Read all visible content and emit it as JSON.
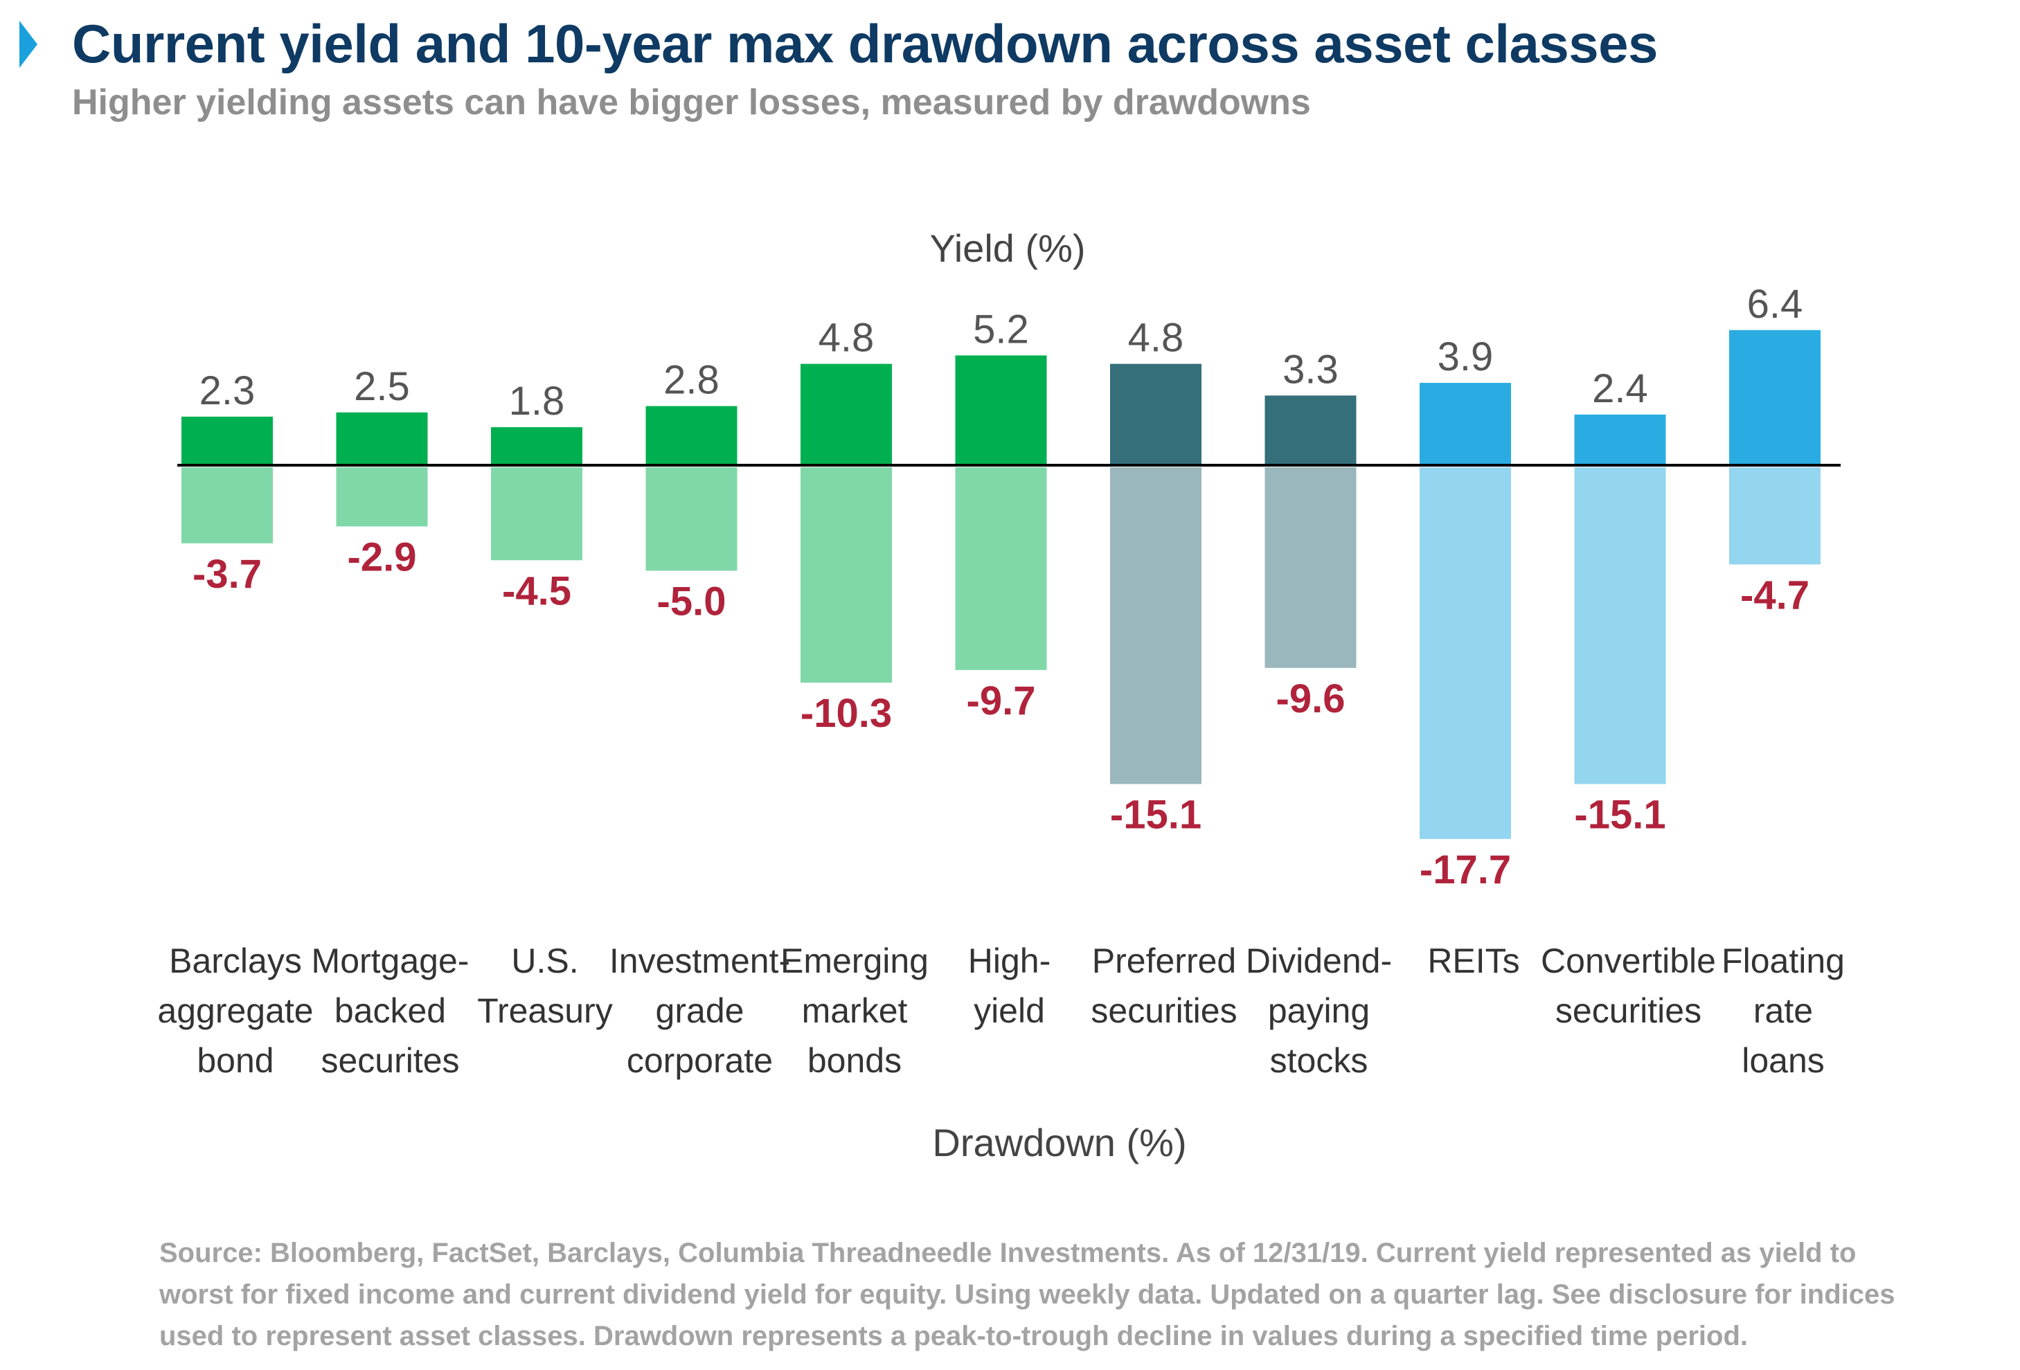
{
  "header": {
    "title": "Current yield and 10-year max drawdown across asset classes",
    "subtitle": "Higher yielding assets can have bigger losses, measured by drawdowns",
    "marker_icon": "triangle-right-icon"
  },
  "chart_data": {
    "type": "bar",
    "title": "Current yield and 10-year max drawdown across asset classes",
    "subtitle": "Higher yielding assets can have bigger losses, measured by drawdowns",
    "yield_label": "Yield (%)",
    "drawdown_label": "Drawdown (%)",
    "categories": [
      [
        "Barclays",
        "aggregate",
        "bond"
      ],
      [
        "Mortgage-",
        "backed",
        "securites"
      ],
      [
        "U.S.",
        "Treasury"
      ],
      [
        "Investment-",
        "grade",
        "corporate"
      ],
      [
        "Emerging",
        "market",
        "bonds"
      ],
      [
        "High-",
        "yield"
      ],
      [
        "Preferred",
        "securities"
      ],
      [
        "Dividend-",
        "paying",
        "stocks"
      ],
      [
        "REITs"
      ],
      [
        "Convertible",
        "securities"
      ],
      [
        "Floating",
        "rate",
        "loans"
      ]
    ],
    "series": [
      {
        "name": "Yield (%)",
        "values": [
          2.3,
          2.5,
          1.8,
          2.8,
          4.8,
          5.2,
          4.8,
          3.3,
          3.9,
          2.4,
          6.4
        ]
      },
      {
        "name": "Drawdown (%)",
        "values": [
          -3.7,
          -2.9,
          -4.5,
          -5.0,
          -10.3,
          -9.7,
          -15.1,
          -9.6,
          -17.7,
          -15.1,
          -4.7
        ]
      }
    ],
    "value_labels": {
      "yield": [
        "2.3",
        "2.5",
        "1.8",
        "2.8",
        "4.8",
        "5.2",
        "4.8",
        "3.3",
        "3.9",
        "2.4",
        "6.4"
      ],
      "drawdown": [
        "-3.7",
        "-2.9",
        "-4.5",
        "-5.0",
        "-10.3",
        "-9.7",
        "-15.1",
        "-9.6",
        "-17.7",
        "-15.1",
        "-4.7"
      ]
    },
    "groups": [
      "fixed-income",
      "fixed-income",
      "fixed-income",
      "fixed-income",
      "fixed-income",
      "fixed-income",
      "hybrid",
      "hybrid",
      "real-asset",
      "real-asset",
      "real-asset"
    ],
    "colors": {
      "fixed-income": {
        "yield": "#00b050",
        "drawdown": "#80d8a8"
      },
      "hybrid": {
        "yield": "#346f7a",
        "drawdown": "#99b7bc"
      },
      "real-asset": {
        "yield": "#2aace2",
        "drawdown": "#94d5f0"
      },
      "yield_label": "#555555",
      "drawdown_label": "#b0233b",
      "axis": "#000000"
    },
    "grid": false,
    "legend": "none"
  },
  "footer": {
    "source": "Source: Bloomberg, FactSet, Barclays, Columbia Threadneedle Investments. As of 12/31/19. Current yield represented as yield to worst for fixed income and current dividend yield for equity. Using weekly data. Updated on a quarter lag. See disclosure for indices used to represent asset classes. Drawdown represents a peak-to-trough decline in values during a specified time period."
  }
}
